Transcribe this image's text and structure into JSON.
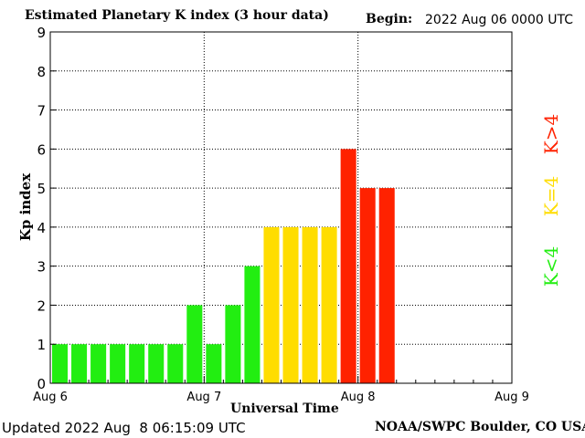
{
  "header": {
    "title": "Estimated Planetary K index (3 hour data)",
    "begin_label": "Begin:",
    "begin_value": "2022 Aug 06 0000 UTC"
  },
  "footer": {
    "updated": "Updated 2022 Aug  8 06:15:09 UTC",
    "source": "NOAA/SWPC Boulder, CO USA"
  },
  "legend": {
    "low": "K<4",
    "equal": "K=4",
    "high": "K>4"
  },
  "colors": {
    "low": "#22ee11",
    "equal": "#ffdd00",
    "high": "#ff2200"
  },
  "chart_data": {
    "type": "bar",
    "title": "Estimated Planetary K index (3 hour data)",
    "xlabel": "Universal Time",
    "ylabel": "Kp index",
    "ylim": [
      0,
      9
    ],
    "yticks": [
      "0",
      "1",
      "2",
      "3",
      "4",
      "5",
      "6",
      "7",
      "8",
      "9"
    ],
    "xticks": [
      "Aug 6",
      "Aug 7",
      "Aug 8",
      "Aug 9"
    ],
    "grid": true,
    "values": [
      1,
      1,
      1,
      1,
      1,
      1,
      1,
      2,
      1,
      2,
      3,
      4,
      4,
      4,
      4,
      6,
      5,
      5
    ]
  }
}
